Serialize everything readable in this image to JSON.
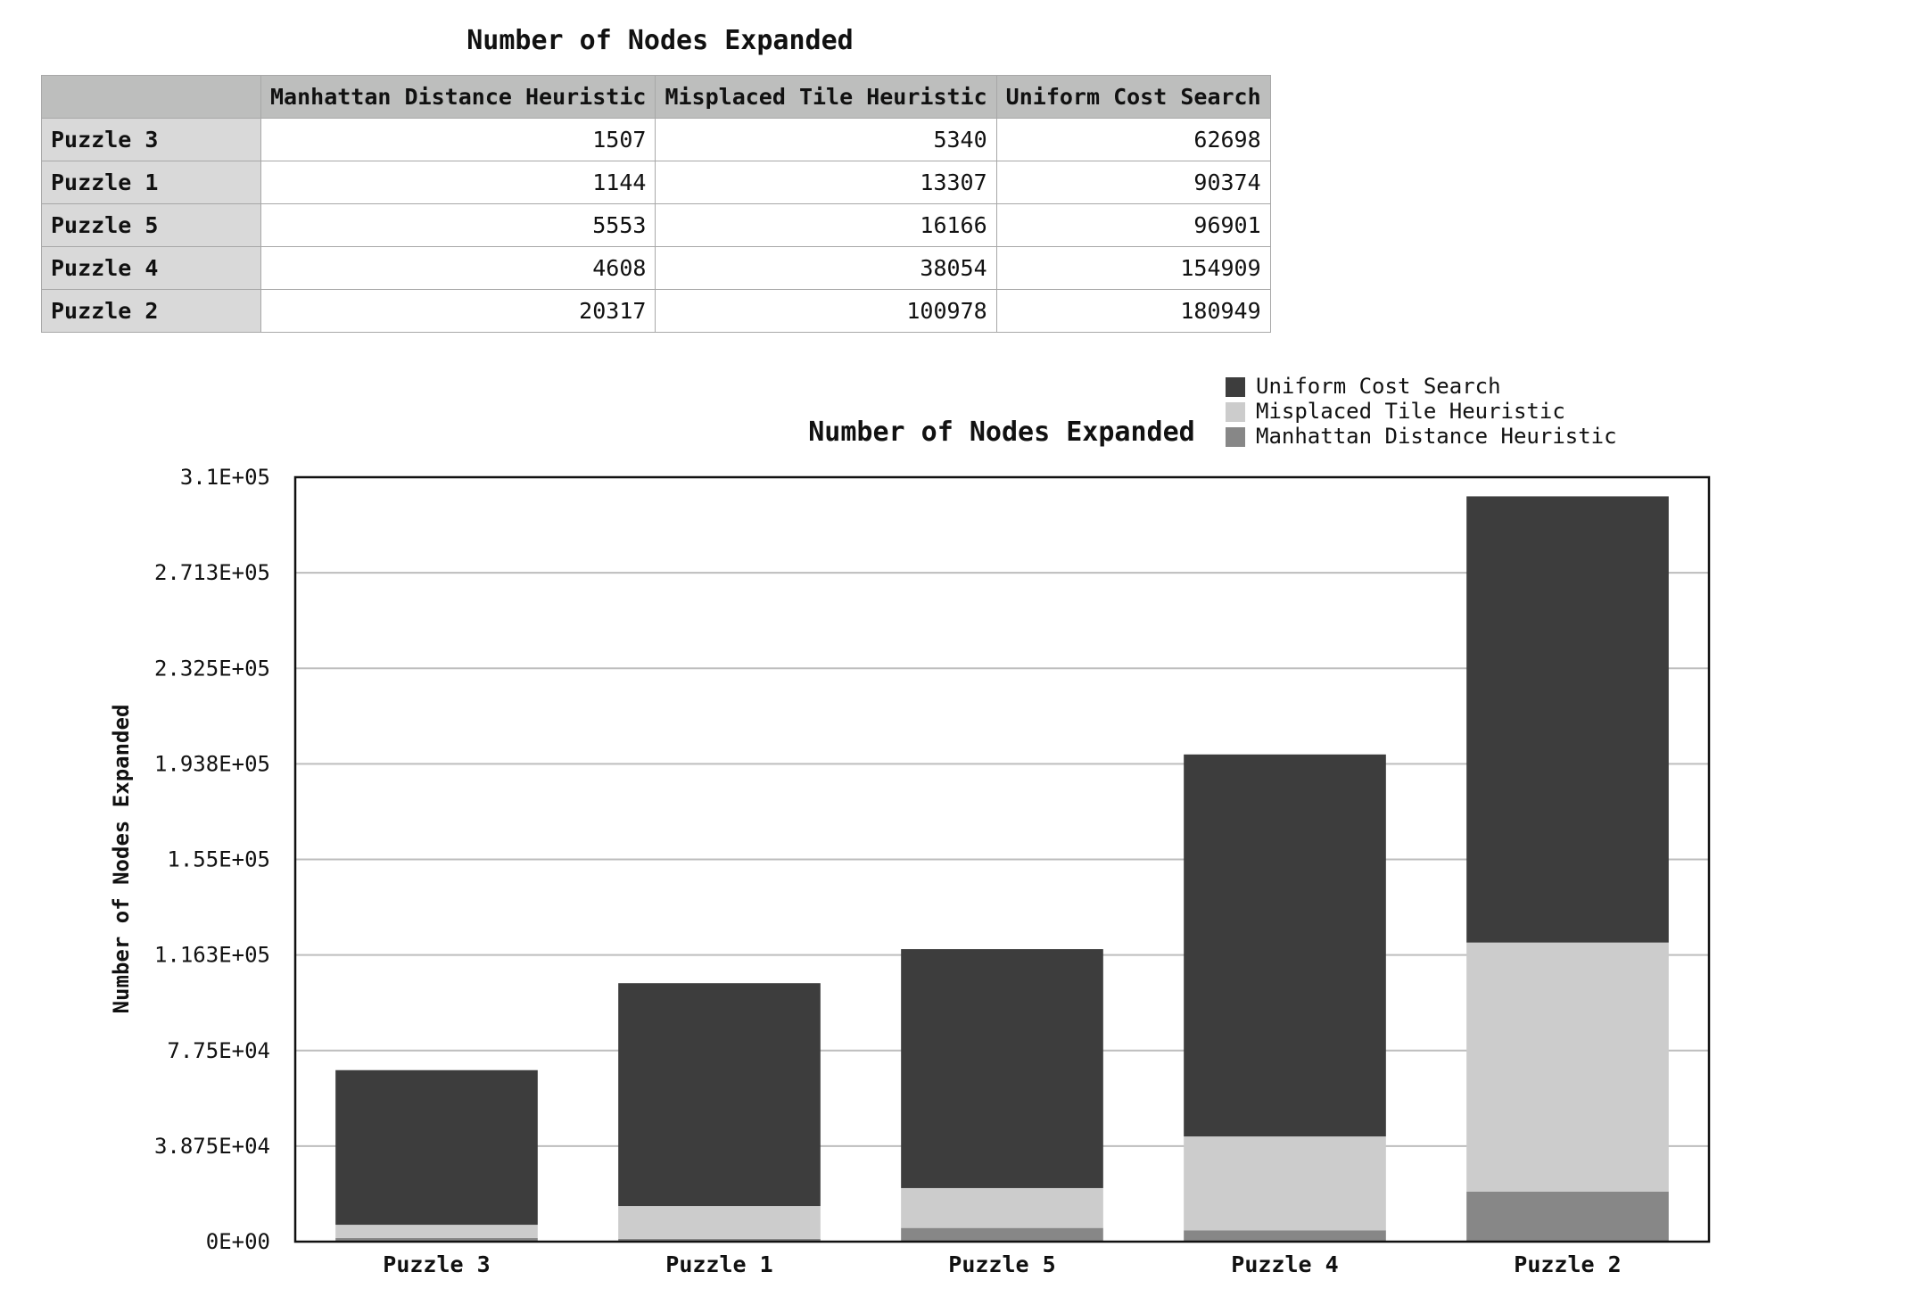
{
  "table": {
    "title": "Number of Nodes Expanded",
    "columns": [
      "Manhattan Distance Heuristic",
      "Misplaced Tile Heuristic",
      "Uniform Cost Search"
    ],
    "rows": [
      {
        "label": "Puzzle 3",
        "values": [
          "1507",
          "5340",
          "62698"
        ]
      },
      {
        "label": "Puzzle 1",
        "values": [
          "1144",
          "13307",
          "90374"
        ]
      },
      {
        "label": "Puzzle 5",
        "values": [
          "5553",
          "16166",
          "96901"
        ]
      },
      {
        "label": "Puzzle 4",
        "values": [
          "4608",
          "38054",
          "154909"
        ]
      },
      {
        "label": "Puzzle 2",
        "values": [
          "20317",
          "100978",
          "180949"
        ]
      }
    ]
  },
  "chart_data": {
    "type": "bar",
    "stacked": true,
    "title": "Number of Nodes Expanded",
    "xlabel": "",
    "ylabel": "Number of Nodes Expanded",
    "categories": [
      "Puzzle 3",
      "Puzzle 1",
      "Puzzle 5",
      "Puzzle 4",
      "Puzzle 2"
    ],
    "series": [
      {
        "name": "Manhattan Distance Heuristic",
        "values": [
          1507,
          1144,
          5553,
          4608,
          20317
        ],
        "color": "#878787"
      },
      {
        "name": "Misplaced Tile Heuristic",
        "values": [
          5340,
          13307,
          16166,
          38054,
          100978
        ],
        "color": "#cccccc"
      },
      {
        "name": "Uniform Cost Search",
        "values": [
          62698,
          90374,
          96901,
          154909,
          180949
        ],
        "color": "#3d3d3d"
      }
    ],
    "ylim": [
      0,
      310000
    ],
    "yticks": [
      "0E+00",
      "3.875E+04",
      "7.75E+04",
      "1.163E+05",
      "1.55E+05",
      "1.938E+05",
      "2.325E+05",
      "2.713E+05",
      "3.1E+05"
    ],
    "grid": true,
    "legend_position": "top-right"
  }
}
